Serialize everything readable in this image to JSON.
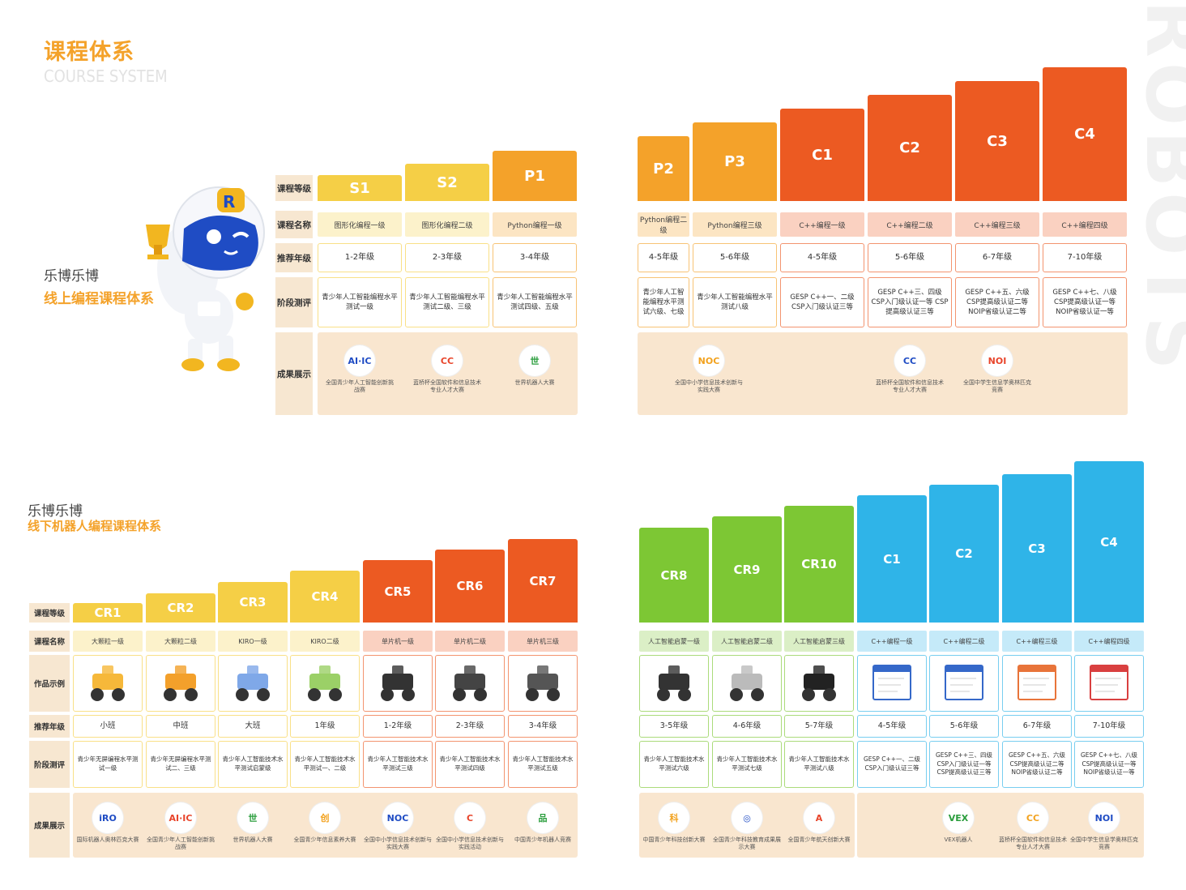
{
  "header": {
    "title_cn": "课程体系",
    "title_en": "COURSE SYSTEM"
  },
  "online": {
    "org": "乐博乐博",
    "system": "线上编程课程体系",
    "row_labels": [
      "课程等级",
      "课程名称",
      "推荐年级",
      "阶段测评",
      "成果展示"
    ],
    "levels": [
      {
        "code": "S1",
        "name": "图形化编程一级",
        "grade": "1-2年级",
        "test": "青少年人工智能编程水平测试一级",
        "color": "#f5cf46"
      },
      {
        "code": "S2",
        "name": "图形化编程二级",
        "grade": "2-3年级",
        "test": "青少年人工智能编程水平测试二级、三级",
        "color": "#f5cf46"
      },
      {
        "code": "P1",
        "name": "Python编程一级",
        "grade": "3-4年级",
        "test": "青少年人工智能编程水平测试四级、五级",
        "color": "#f4a22a"
      },
      {
        "code": "P2",
        "name": "Python编程二级",
        "grade": "4-5年级",
        "test": "青少年人工智能编程水平测试六级、七级",
        "color": "#f4a22a"
      },
      {
        "code": "P3",
        "name": "Python编程三级",
        "grade": "5-6年级",
        "test": "青少年人工智能编程水平测试八级",
        "color": "#f4a22a"
      },
      {
        "code": "C1",
        "name": "C++编程一级",
        "grade": "4-5年级",
        "test": "GESP C++一、二级 CSP入门级认证三等",
        "color": "#ec5a22"
      },
      {
        "code": "C2",
        "name": "C++编程二级",
        "grade": "5-6年级",
        "test": "GESP C++三、四级 CSP入门级认证一等 CSP提高级认证三等",
        "color": "#ec5a22"
      },
      {
        "code": "C3",
        "name": "C++编程三级",
        "grade": "6-7年级",
        "test": "GESP C++五、六级 CSP提高级认证二等 NOIP省级认证二等",
        "color": "#ec5a22"
      },
      {
        "code": "C4",
        "name": "C++编程四级",
        "grade": "7-10年级",
        "test": "GESP C++七、八级 CSP提高级认证一等 NOIP省级认证一等",
        "color": "#ec5a22"
      }
    ],
    "achievements": [
      {
        "logo": "AI·IC",
        "caption": "全国青少年人工智能创新挑战赛"
      },
      {
        "logo": "CC",
        "caption": "蓝桥杯全国软件和信息技术专业人才大赛"
      },
      {
        "logo": "世",
        "caption": "世界机器人大赛"
      },
      {
        "logo": "NOC",
        "caption": "全国中小学信息技术创新与实践大赛"
      },
      {
        "logo": "CC",
        "caption": "蓝桥杯全国软件和信息技术专业人才大赛"
      },
      {
        "logo": "NOI",
        "caption": "全国中学生信息学奥林匹克竞赛"
      }
    ]
  },
  "offline": {
    "org": "乐博乐博",
    "system": "线下机器人编程课程体系",
    "row_labels": [
      "课程等级",
      "课程名称",
      "作品示例",
      "推荐年级",
      "阶段测评",
      "成果展示"
    ],
    "levels": [
      {
        "code": "CR1",
        "name": "大颗粒一级",
        "grade": "小班",
        "test": "青少年无屏编程水平测试一级",
        "color": "#f5cf46"
      },
      {
        "code": "CR2",
        "name": "大颗粒二级",
        "grade": "中班",
        "test": "青少年无屏编程水平测试二、三级",
        "color": "#f5cf46"
      },
      {
        "code": "CR3",
        "name": "KIRO一级",
        "grade": "大班",
        "test": "青少年人工智能技术水平测试启蒙级",
        "color": "#f5cf46"
      },
      {
        "code": "CR4",
        "name": "KIRO二级",
        "grade": "1年级",
        "test": "青少年人工智能技术水平测试一、二级",
        "color": "#f5cf46"
      },
      {
        "code": "CR5",
        "name": "单片机一级",
        "grade": "1-2年级",
        "test": "青少年人工智能技术水平测试三级",
        "color": "#ec5a22"
      },
      {
        "code": "CR6",
        "name": "单片机二级",
        "grade": "2-3年级",
        "test": "青少年人工智能技术水平测试四级",
        "color": "#ec5a22"
      },
      {
        "code": "CR7",
        "name": "单片机三级",
        "grade": "3-4年级",
        "test": "青少年人工智能技术水平测试五级",
        "color": "#ec5a22"
      },
      {
        "code": "CR8",
        "name": "人工智能启蒙一级",
        "grade": "3-5年级",
        "test": "青少年人工智能技术水平测试六级",
        "color": "#7dc734"
      },
      {
        "code": "CR9",
        "name": "人工智能启蒙二级",
        "grade": "4-6年级",
        "test": "青少年人工智能技术水平测试七级",
        "color": "#7dc734"
      },
      {
        "code": "CR10",
        "name": "人工智能启蒙三级",
        "grade": "5-7年级",
        "test": "青少年人工智能技术水平测试八级",
        "color": "#7dc734"
      },
      {
        "code": "C1",
        "name": "C++编程一级",
        "grade": "4-5年级",
        "test": "GESP C++一、二级 CSP入门级认证三等",
        "color": "#2fb4e8"
      },
      {
        "code": "C2",
        "name": "C++编程二级",
        "grade": "5-6年级",
        "test": "GESP C++三、四级 CSP入门级认证一等 CSP提高级认证三等",
        "color": "#2fb4e8"
      },
      {
        "code": "C3",
        "name": "C++编程三级",
        "grade": "6-7年级",
        "test": "GESP C++五、六级 CSP提高级认证二等 NOIP省级认证二等",
        "color": "#2fb4e8"
      },
      {
        "code": "C4",
        "name": "C++编程四级",
        "grade": "7-10年级",
        "test": "GESP C++七、八级 CSP提高级认证一等 NOIP省级认证一等",
        "color": "#2fb4e8"
      }
    ],
    "achievements": [
      {
        "logo": "iRO",
        "caption": "国际机器人奥林匹克大赛"
      },
      {
        "logo": "AI·IC",
        "caption": "全国青少年人工智能创新挑战赛"
      },
      {
        "logo": "世",
        "caption": "世界机器人大赛"
      },
      {
        "logo": "创",
        "caption": "全国青少年信息素养大赛"
      },
      {
        "logo": "NOC",
        "caption": "全国中小学信息技术创新与实践大赛"
      },
      {
        "logo": "C",
        "caption": "全国中小学信息技术创新与实践活动"
      },
      {
        "logo": "品",
        "caption": "中国青少年机器人竞赛"
      },
      {
        "logo": "科",
        "caption": "中国青少年科技创新大赛"
      },
      {
        "logo": "◎",
        "caption": "全国青少年科技教育成果展示大赛"
      },
      {
        "logo": "A",
        "caption": "全国青少年航天创新大赛"
      },
      {
        "logo": "VEX",
        "caption": "VEX机器人"
      },
      {
        "logo": "CC",
        "caption": "蓝桥杯全国软件和信息技术专业人才大赛"
      },
      {
        "logo": "NOI",
        "caption": "全国中学生信息学奥林匹克竞赛"
      }
    ]
  }
}
